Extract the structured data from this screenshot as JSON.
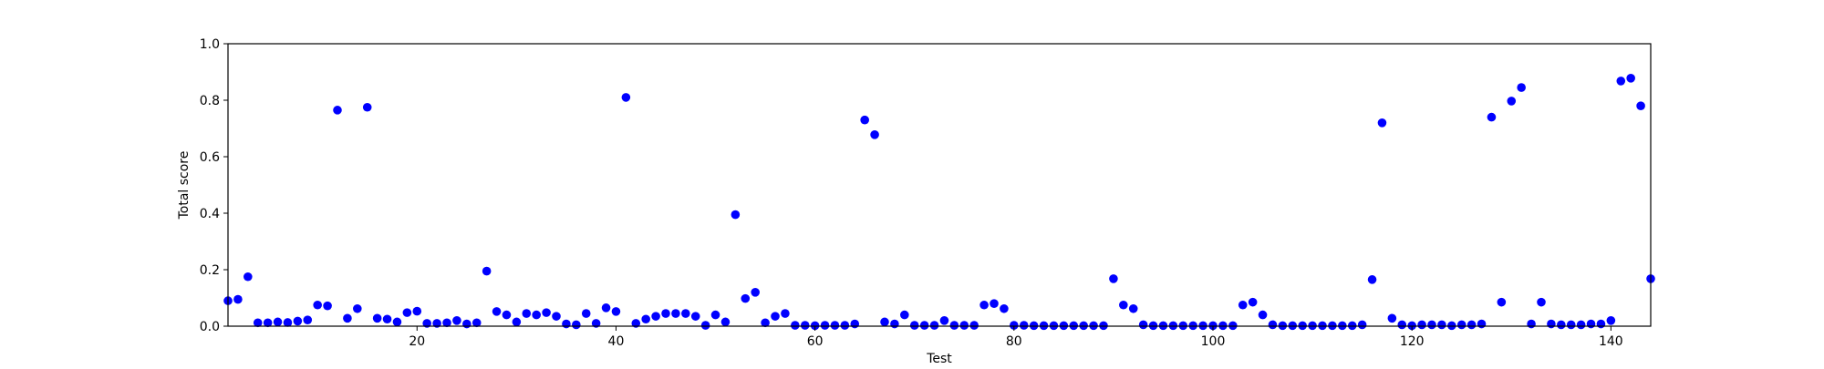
{
  "chart_data": {
    "type": "scatter",
    "title": "",
    "xlabel": "Test",
    "ylabel": "Total score",
    "xlim": [
      1,
      144
    ],
    "ylim": [
      0.0,
      1.0
    ],
    "xticks": [
      20,
      40,
      60,
      80,
      100,
      120,
      140
    ],
    "xtick_labels": [
      "20",
      "40",
      "60",
      "80",
      "100",
      "120",
      "140"
    ],
    "yticks": [
      0.0,
      0.2,
      0.4,
      0.6,
      0.8,
      1.0
    ],
    "ytick_labels": [
      "0.0",
      "0.2",
      "0.4",
      "0.6",
      "0.8",
      "1.0"
    ],
    "grid": false,
    "marker_color": "#0000ff",
    "series": [
      {
        "x": [
          1,
          2,
          3,
          4,
          5,
          6,
          7,
          8,
          9,
          10,
          11,
          12,
          13,
          14,
          15,
          16,
          17,
          18,
          19,
          20,
          21,
          22,
          23,
          24,
          25,
          26,
          27,
          28,
          29,
          30,
          31,
          32,
          33,
          34,
          35,
          36,
          37,
          38,
          39,
          40,
          41,
          42,
          43,
          44,
          45,
          46,
          47,
          48,
          49,
          50,
          51,
          52,
          53,
          54,
          55,
          56,
          57,
          58,
          59,
          60,
          61,
          62,
          63,
          64,
          65,
          66,
          67,
          68,
          69,
          70,
          71,
          72,
          73,
          74,
          75,
          76,
          77,
          78,
          79,
          80,
          81,
          82,
          83,
          84,
          85,
          86,
          87,
          88,
          89,
          90,
          91,
          92,
          93,
          94,
          95,
          96,
          97,
          98,
          99,
          100,
          101,
          102,
          103,
          104,
          105,
          106,
          107,
          108,
          109,
          110,
          111,
          112,
          113,
          114,
          115,
          116,
          117,
          118,
          119,
          120,
          121,
          122,
          123,
          124,
          125,
          126,
          127,
          128,
          129,
          130,
          131,
          132,
          133,
          134,
          135,
          136,
          137,
          138,
          139,
          140,
          141,
          142,
          143,
          144
        ],
        "y": [
          0.09,
          0.095,
          0.175,
          0.012,
          0.012,
          0.015,
          0.013,
          0.018,
          0.022,
          0.075,
          0.072,
          0.765,
          0.028,
          0.062,
          0.775,
          0.028,
          0.025,
          0.015,
          0.048,
          0.053,
          0.01,
          0.01,
          0.012,
          0.02,
          0.008,
          0.012,
          0.195,
          0.052,
          0.04,
          0.015,
          0.045,
          0.04,
          0.048,
          0.035,
          0.008,
          0.005,
          0.045,
          0.01,
          0.065,
          0.052,
          0.81,
          0.01,
          0.025,
          0.035,
          0.045,
          0.045,
          0.045,
          0.035,
          0.003,
          0.04,
          0.015,
          0.395,
          0.098,
          0.12,
          0.012,
          0.035,
          0.045,
          0.003,
          0.003,
          0.002,
          0.003,
          0.003,
          0.003,
          0.008,
          0.73,
          0.678,
          0.015,
          0.008,
          0.04,
          0.003,
          0.003,
          0.003,
          0.02,
          0.003,
          0.003,
          0.003,
          0.075,
          0.08,
          0.062,
          0.003,
          0.003,
          0.002,
          0.002,
          0.002,
          0.002,
          0.002,
          0.002,
          0.002,
          0.002,
          0.168,
          0.075,
          0.062,
          0.005,
          0.002,
          0.002,
          0.002,
          0.002,
          0.002,
          0.002,
          0.002,
          0.002,
          0.002,
          0.075,
          0.085,
          0.04,
          0.005,
          0.002,
          0.002,
          0.002,
          0.002,
          0.002,
          0.002,
          0.002,
          0.002,
          0.005,
          0.165,
          0.72,
          0.028,
          0.005,
          0.002,
          0.005,
          0.005,
          0.005,
          0.002,
          0.005,
          0.005,
          0.008,
          0.74,
          0.085,
          0.797,
          0.845,
          0.008,
          0.085,
          0.008,
          0.005,
          0.005,
          0.005,
          0.008,
          0.008,
          0.02,
          0.868,
          0.878,
          0.78,
          0.168
        ]
      }
    ]
  }
}
